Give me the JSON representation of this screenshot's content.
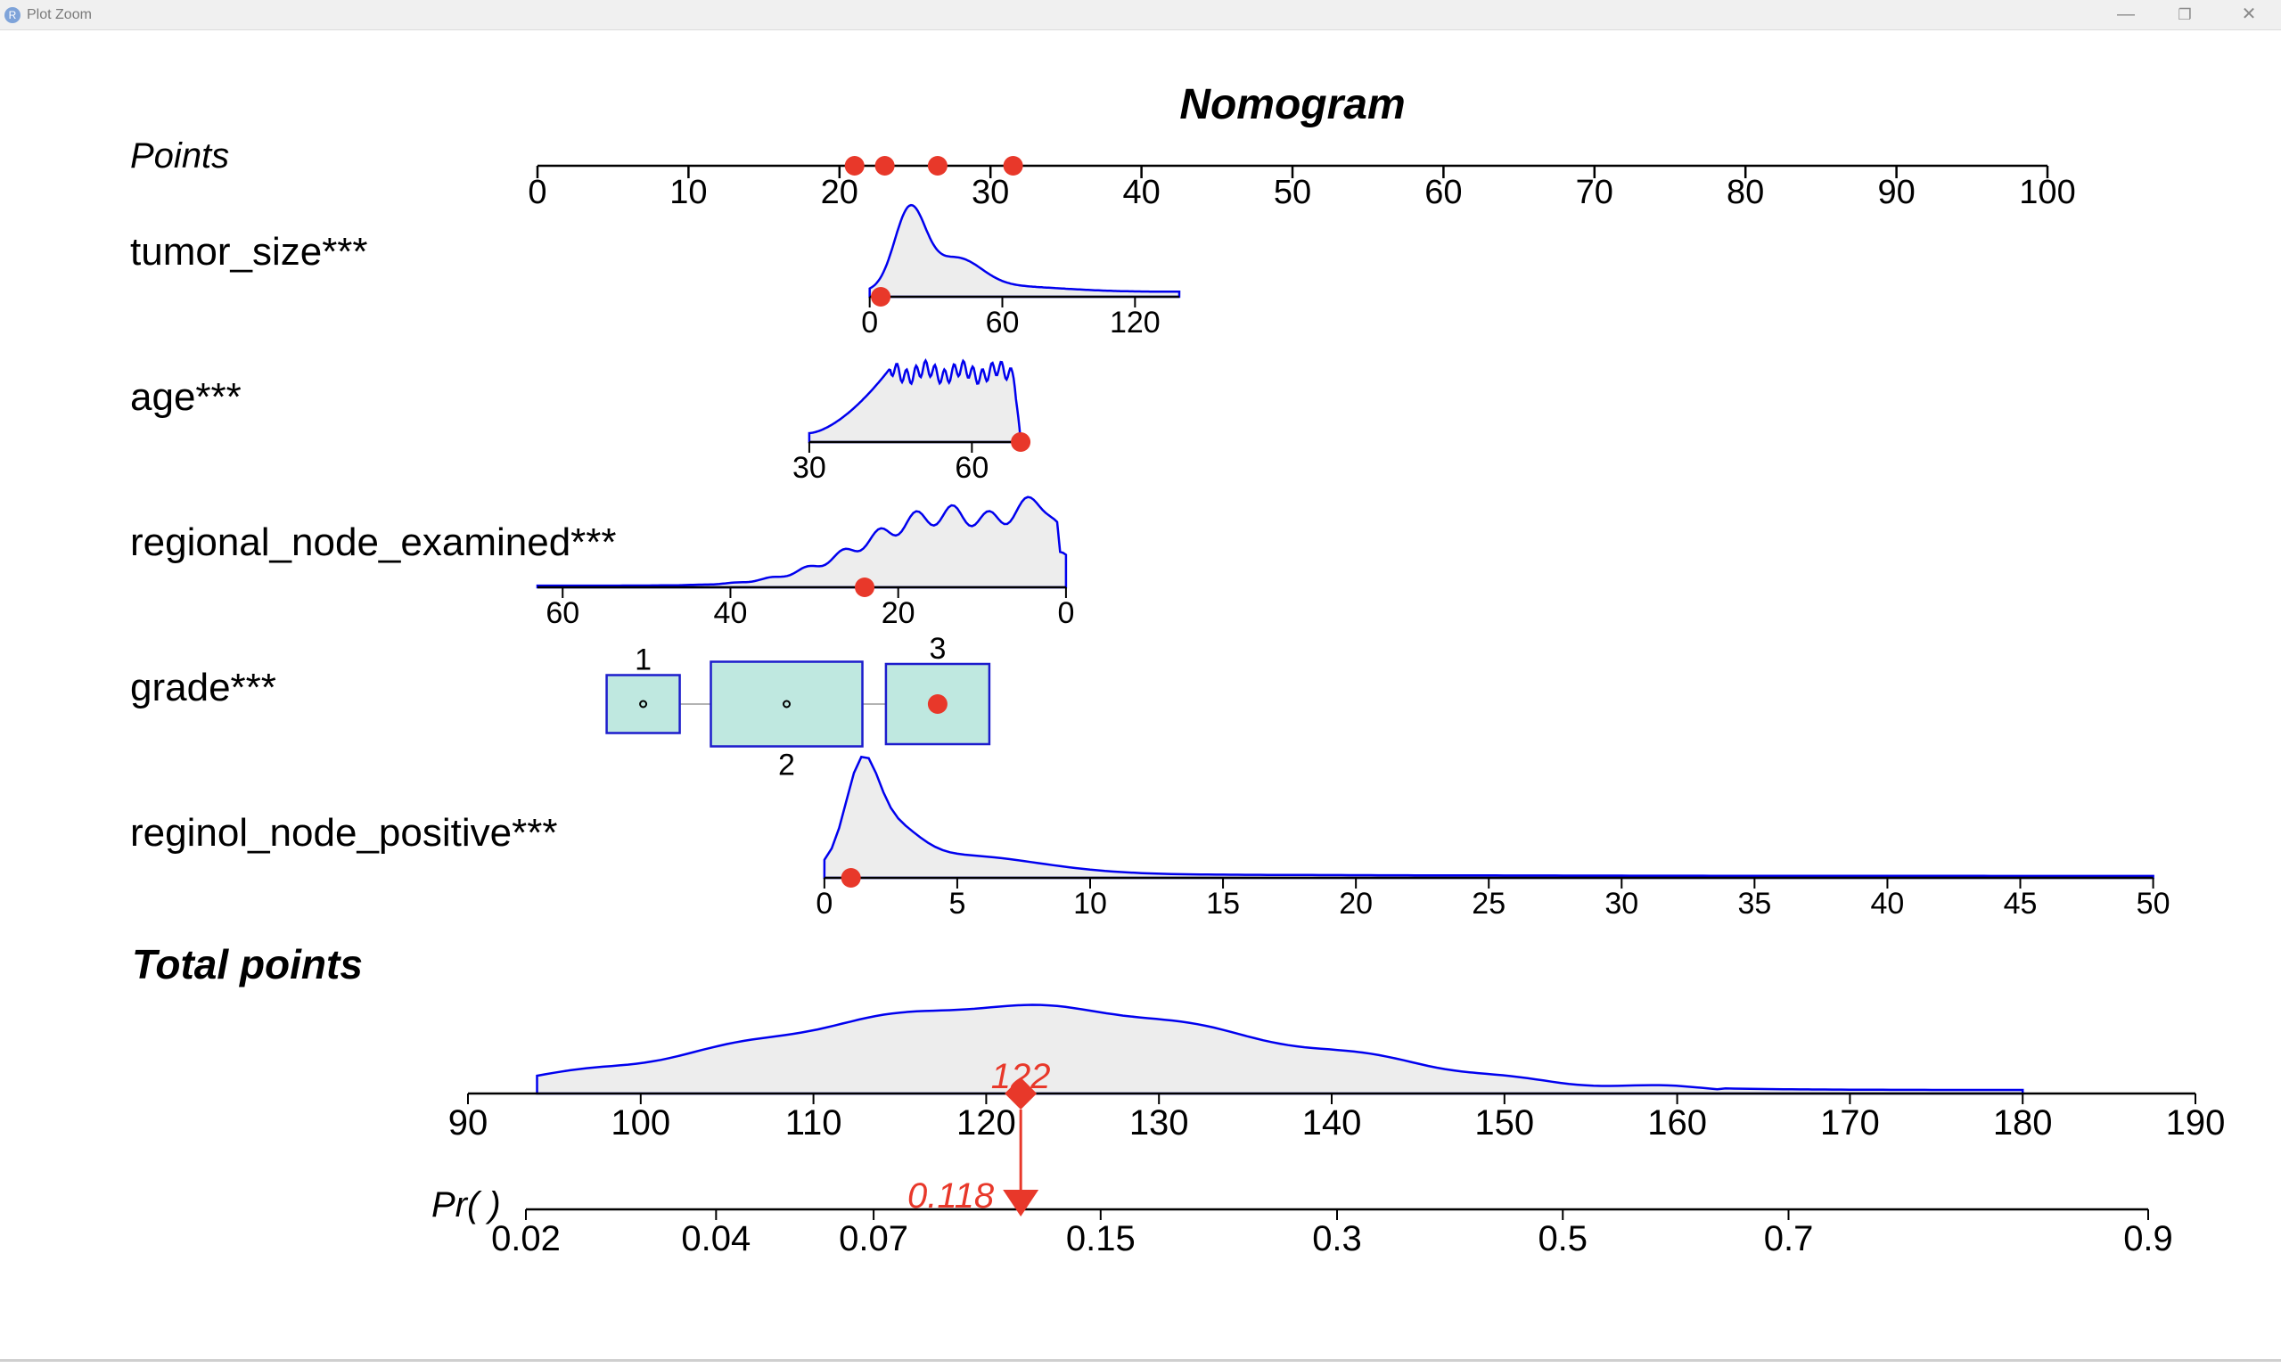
{
  "window": {
    "title": "Plot Zoom",
    "app_icon": "R",
    "buttons": {
      "minimize": "—",
      "maximize": "❐",
      "close": "✕"
    }
  },
  "colors": {
    "axis": "#000000",
    "density_line": "#0000ee",
    "density_fill": "#ededed",
    "box_fill": "#bfe8e0",
    "box_border": "#1c1ccc",
    "highlight": "#e8382a"
  },
  "chart_data": {
    "type": "nomogram",
    "title": "Nomogram",
    "points_axis": {
      "label": "Points",
      "ticks": [
        0,
        10,
        20,
        30,
        40,
        50,
        60,
        70,
        80,
        90,
        100
      ],
      "markers": [
        21,
        23,
        26.5,
        31.5
      ]
    },
    "variables": [
      {
        "label": "tumor_size***",
        "kind": "continuous",
        "ticks": [
          0,
          60,
          120
        ],
        "point_range": [
          22,
          42.5
        ],
        "value_range": [
          0,
          140
        ],
        "direction": "increasing",
        "selected_value": 5,
        "density_shape": "right-skewed, peak near 20"
      },
      {
        "label": "age***",
        "kind": "continuous",
        "ticks": [
          30,
          60
        ],
        "point_range": [
          18,
          32
        ],
        "value_range": [
          30,
          69
        ],
        "direction": "increasing",
        "selected_value": 69,
        "density_shape": "plateau between 45 and 68, noisy"
      },
      {
        "label": "regional_node_examined***",
        "kind": "continuous",
        "ticks": [
          60,
          40,
          20,
          0
        ],
        "point_range": [
          0,
          35
        ],
        "value_range": [
          63,
          0
        ],
        "direction": "decreasing",
        "selected_value": 24,
        "density_shape": "peak near 14"
      },
      {
        "label": "grade***",
        "kind": "categorical",
        "categories": [
          "1",
          "2",
          "3"
        ],
        "frequencies": [
          0.15,
          0.45,
          0.4
        ],
        "selected_category": "3"
      },
      {
        "label": "reginol_node_positive***",
        "kind": "continuous",
        "ticks": [
          0,
          5,
          10,
          15,
          20,
          25,
          30,
          35,
          40,
          45,
          50
        ],
        "point_range": [
          19,
          107
        ],
        "value_range": [
          0,
          50
        ],
        "direction": "increasing",
        "selected_value": 1,
        "density_shape": "sharp peak near 1, long right tail"
      }
    ],
    "total_points": {
      "label": "Total points",
      "ticks": [
        90,
        100,
        110,
        120,
        130,
        140,
        150,
        160,
        170,
        180,
        190
      ],
      "selected_value": 122,
      "selected_label": "122",
      "density_shape": "broad hump peaking near 122"
    },
    "probability": {
      "label": "Pr( )",
      "ticks": [
        "0.02",
        "0.04",
        "0.07",
        "0.15",
        "0.3",
        "0.5",
        "0.7",
        "0.9"
      ],
      "selected_value": 0.118,
      "selected_label": "0.118"
    }
  }
}
